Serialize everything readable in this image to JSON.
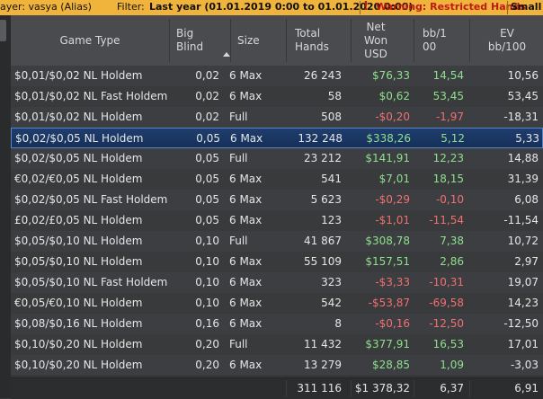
{
  "topbar": {
    "player": "ayer: vasya (Alias)",
    "filter_label": "Filter:",
    "filter_value": "Last year (01.01.2019 0:00 to 01.01.2020 0:00)",
    "warning_icon": "exclamation-icon",
    "warning_text": "Warning: Restricted Hands",
    "trailing_text": "Small S"
  },
  "columns": {
    "game_type": "Game Type",
    "big_blind": "Big\nBlind",
    "size": "Size",
    "total_hands": "Total\nHands",
    "net_won": "Net\nWon\nUSD",
    "bb100": "bb/1\n00",
    "ev_bb100": "EV\nbb/100",
    "sort_icon": "sort-ascending-icon"
  },
  "rows": [
    {
      "game": "$0,01/$0,02 NL Holdem",
      "bb": "0,02",
      "size": "6 Max",
      "hands": "26 243",
      "net": "$76,33",
      "net_sign": "pos",
      "bb100": "14,54",
      "bb100_sign": "pos",
      "ev": "10,56"
    },
    {
      "game": "$0,01/$0,02 NL Fast Holdem",
      "bb": "0,02",
      "size": "6 Max",
      "hands": "58",
      "net": "$0,62",
      "net_sign": "pos",
      "bb100": "53,45",
      "bb100_sign": "pos",
      "ev": "53,45"
    },
    {
      "game": "$0,01/$0,02 NL Holdem",
      "bb": "0,02",
      "size": "Full",
      "hands": "508",
      "net": "-$0,20",
      "net_sign": "neg",
      "bb100": "-1,97",
      "bb100_sign": "neg",
      "ev": "-18,31"
    },
    {
      "game": "$0,02/$0,05 NL Holdem",
      "bb": "0,05",
      "size": "6 Max",
      "hands": "132 248",
      "net": "$338,26",
      "net_sign": "pos",
      "bb100": "5,12",
      "bb100_sign": "pos",
      "ev": "5,33",
      "selected": true
    },
    {
      "game": "$0,02/$0,05 NL Holdem",
      "bb": "0,05",
      "size": "Full",
      "hands": "23 212",
      "net": "$141,91",
      "net_sign": "pos",
      "bb100": "12,23",
      "bb100_sign": "pos",
      "ev": "14,88"
    },
    {
      "game": "€0,02/€0,05 NL Holdem",
      "bb": "0,05",
      "size": "6 Max",
      "hands": "541",
      "net": "$7,01",
      "net_sign": "pos",
      "bb100": "18,15",
      "bb100_sign": "pos",
      "ev": "31,39"
    },
    {
      "game": "$0,02/$0,05 NL Fast Holdem",
      "bb": "0,05",
      "size": "6 Max",
      "hands": "5 623",
      "net": "-$0,29",
      "net_sign": "neg",
      "bb100": "-0,10",
      "bb100_sign": "neg",
      "ev": "6,08"
    },
    {
      "game": "£0,02/£0,05 NL Holdem",
      "bb": "0,05",
      "size": "6 Max",
      "hands": "123",
      "net": "-$1,01",
      "net_sign": "neg",
      "bb100": "-11,54",
      "bb100_sign": "neg",
      "ev": "-11,54"
    },
    {
      "game": "$0,05/$0,10 NL Holdem",
      "bb": "0,10",
      "size": "Full",
      "hands": "41 867",
      "net": "$308,78",
      "net_sign": "pos",
      "bb100": "7,38",
      "bb100_sign": "pos",
      "ev": "10,72"
    },
    {
      "game": "$0,05/$0,10 NL Holdem",
      "bb": "0,10",
      "size": "6 Max",
      "hands": "55 109",
      "net": "$157,51",
      "net_sign": "pos",
      "bb100": "2,86",
      "bb100_sign": "pos",
      "ev": "2,97"
    },
    {
      "game": "$0,05/$0,10 NL Fast Holdem",
      "bb": "0,10",
      "size": "6 Max",
      "hands": "323",
      "net": "-$3,33",
      "net_sign": "neg",
      "bb100": "-10,31",
      "bb100_sign": "neg",
      "ev": "19,07"
    },
    {
      "game": "€0,05/€0,10 NL Holdem",
      "bb": "0,10",
      "size": "6 Max",
      "hands": "542",
      "net": "-$53,87",
      "net_sign": "neg",
      "bb100": "-69,58",
      "bb100_sign": "neg",
      "ev": "14,23"
    },
    {
      "game": "$0,08/$0,16 NL Holdem",
      "bb": "0,16",
      "size": "6 Max",
      "hands": "8",
      "net": "-$0,16",
      "net_sign": "neg",
      "bb100": "-12,50",
      "bb100_sign": "neg",
      "ev": "-12,50"
    },
    {
      "game": "$0,10/$0,20 NL Holdem",
      "bb": "0,20",
      "size": "Full",
      "hands": "11 432",
      "net": "$377,91",
      "net_sign": "pos",
      "bb100": "16,53",
      "bb100_sign": "pos",
      "ev": "17,01"
    },
    {
      "game": "$0,10/$0,20 NL Holdem",
      "bb": "0,20",
      "size": "6 Max",
      "hands": "13 279",
      "net": "$28,85",
      "net_sign": "pos",
      "bb100": "1,09",
      "bb100_sign": "pos",
      "ev": "-3,03"
    }
  ],
  "totals": {
    "hands": "311 116",
    "net": "$1 378,32",
    "bb100": "6,37",
    "ev": "6,91"
  },
  "colors": {
    "positive": "#8ee08e",
    "negative": "#f07070",
    "selected_row": "#1f3d6e",
    "warning_bar": "#f0b43c"
  }
}
